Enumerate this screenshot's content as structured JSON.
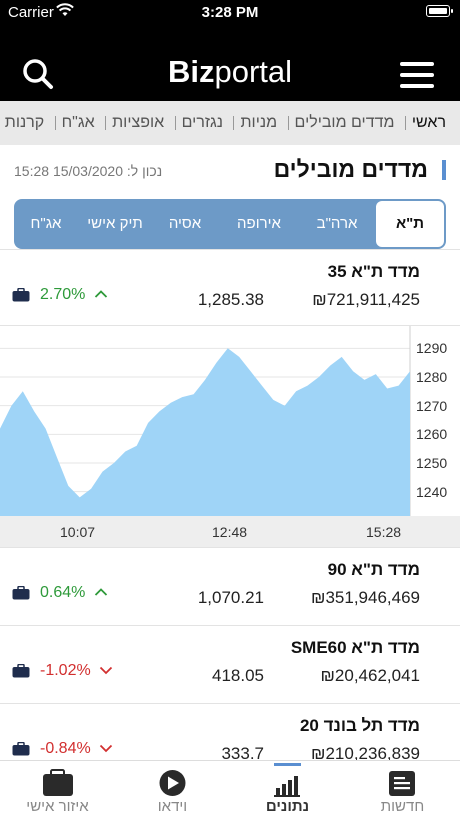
{
  "status_bar": {
    "carrier": "Carrier",
    "time": "3:28 PM"
  },
  "header": {
    "logo_bold": "Biz",
    "logo_rest": "portal"
  },
  "nav": {
    "items": [
      "ראשי",
      "מדדים מובילים",
      "מניות",
      "נגזרים",
      "אופציות",
      "אג\"ח",
      "קרנות"
    ]
  },
  "section": {
    "title": "מדדים מובילים",
    "timestamp": "נכון ל: 15/03/2020 15:28"
  },
  "tabs": [
    "ת\"א",
    "ארה\"ב",
    "אירופה",
    "אסיה",
    "תיק אישי",
    "אג\"ח"
  ],
  "quotes": [
    {
      "name": "מדד ת\"א 35",
      "volume": "₪721,911,425",
      "price": "1,285.38",
      "change": "2.70%",
      "direction": "up"
    },
    {
      "name": "מדד ת\"א 90",
      "volume": "₪351,946,469",
      "price": "1,070.21",
      "change": "0.64%",
      "direction": "up"
    },
    {
      "name": "מדד ת\"א SME60",
      "volume": "₪20,462,041",
      "price": "418.05",
      "change": "-1.02%",
      "direction": "down"
    },
    {
      "name": "מדד תל בונד 20",
      "volume": "₪210,236,839",
      "price": "333.7",
      "change": "-0.84%",
      "direction": "down"
    }
  ],
  "chart_data": {
    "type": "area",
    "x_ticks": [
      "10:07",
      "12:48",
      "15:28"
    ],
    "y_ticks": [
      1240,
      1250,
      1260,
      1270,
      1280,
      1290
    ],
    "ylim": [
      1235,
      1295
    ],
    "values": [
      1262,
      1270,
      1275,
      1268,
      1262,
      1252,
      1242,
      1238,
      1241,
      1247,
      1250,
      1254,
      1256,
      1264,
      1268,
      1271,
      1273,
      1274,
      1279,
      1285,
      1290,
      1287,
      1282,
      1277,
      1272,
      1270,
      1275,
      1277,
      1280,
      1284,
      1287,
      1282,
      1279,
      1281,
      1276,
      1277,
      1282
    ],
    "grid": true,
    "color": "#9fd4f7"
  },
  "tabbar": {
    "items": [
      {
        "label": "איזור אישי",
        "icon": "briefcase-icon"
      },
      {
        "label": "וידאו",
        "icon": "play-icon"
      },
      {
        "label": "נתונים",
        "icon": "bar-chart-icon"
      },
      {
        "label": "חדשות",
        "icon": "news-icon"
      }
    ]
  }
}
